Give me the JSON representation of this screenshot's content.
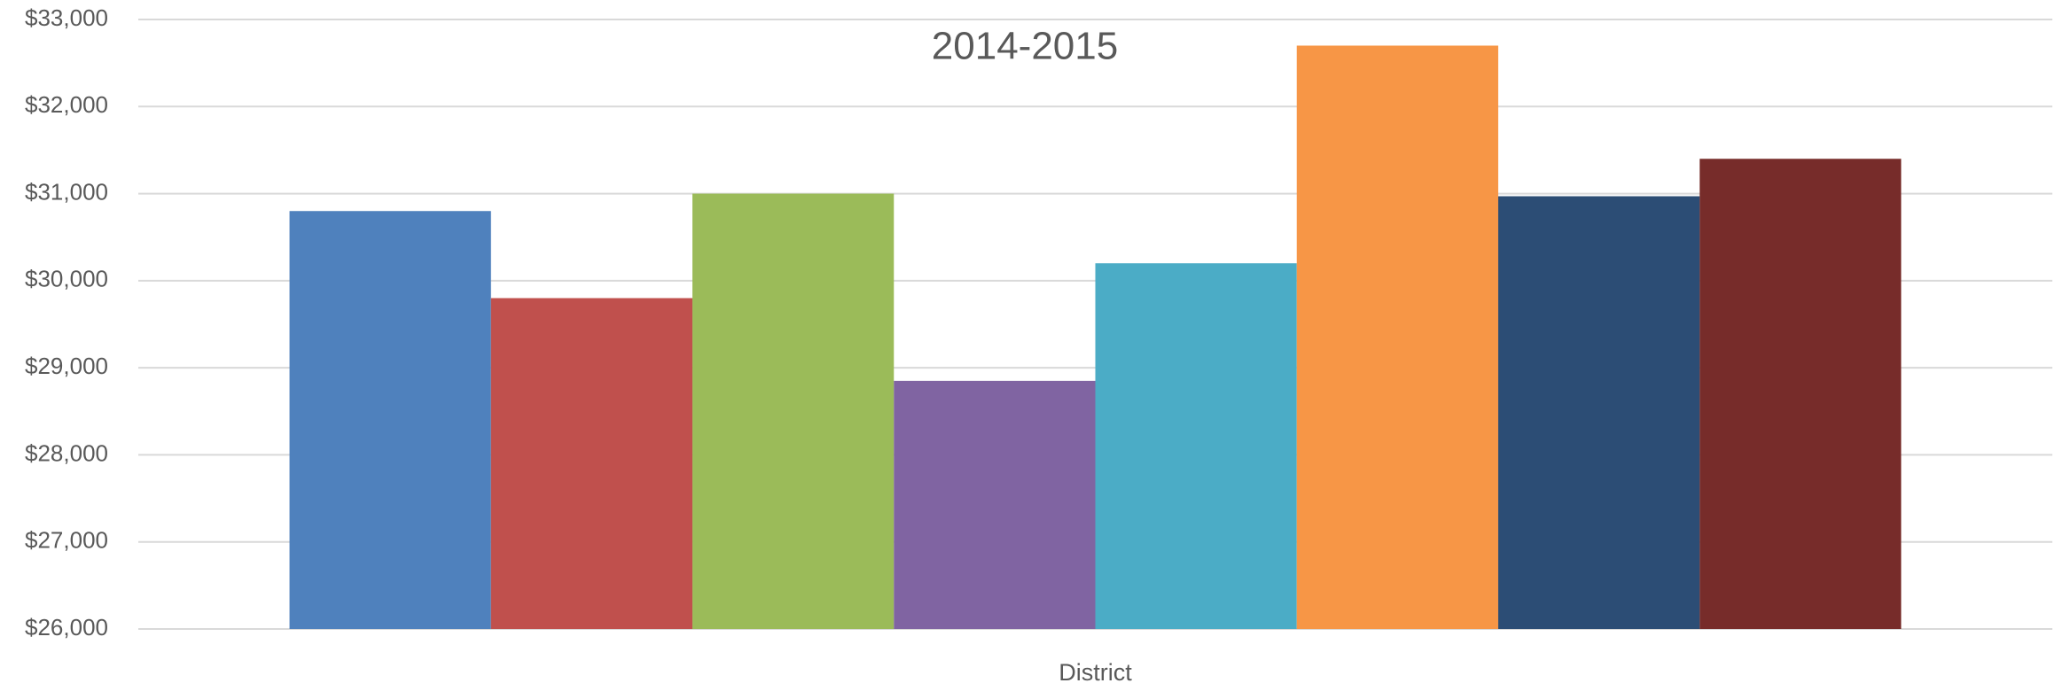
{
  "chart_data": {
    "type": "bar",
    "title": "2014-2015",
    "categories": [
      "District"
    ],
    "series": [
      {
        "color": "#4f81bd",
        "values": [
          30800
        ]
      },
      {
        "color": "#c0504d",
        "values": [
          29800
        ]
      },
      {
        "color": "#9bbb59",
        "values": [
          31000
        ]
      },
      {
        "color": "#8064a2",
        "values": [
          28850
        ]
      },
      {
        "color": "#4bacc6",
        "values": [
          30200
        ]
      },
      {
        "color": "#f79646",
        "values": [
          32700
        ]
      },
      {
        "color": "#2c4d75",
        "values": [
          30970
        ]
      },
      {
        "color": "#772c2a",
        "values": [
          31400
        ]
      }
    ],
    "ylim": [
      26000,
      33000
    ],
    "yticks": [
      {
        "value": 26000,
        "label": "$26,000"
      },
      {
        "value": 27000,
        "label": "$27,000"
      },
      {
        "value": 28000,
        "label": "$28,000"
      },
      {
        "value": 29000,
        "label": "$29,000"
      },
      {
        "value": 30000,
        "label": "$30,000"
      },
      {
        "value": 31000,
        "label": "$31,000"
      },
      {
        "value": 32000,
        "label": "$32,000"
      },
      {
        "value": 33000,
        "label": "$33,000"
      }
    ],
    "grid": true
  }
}
